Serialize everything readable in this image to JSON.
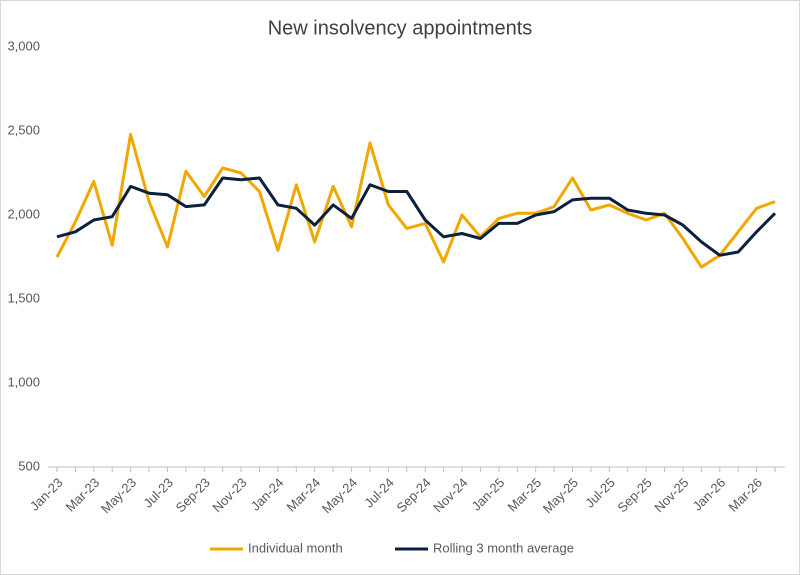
{
  "chart_data": {
    "type": "line",
    "title": "New insolvency appointments",
    "categories": [
      "Jan-23",
      null,
      "Mar-23",
      null,
      "May-23",
      null,
      "Jul-23",
      null,
      "Sep-23",
      null,
      "Nov-23",
      null,
      "Jan-24",
      null,
      "Mar-24",
      null,
      "May-24",
      null,
      "Jul-24",
      null,
      "Sep-24",
      null,
      "Nov-24",
      null,
      "Jan-25",
      null,
      "Mar-25",
      null,
      "May-25",
      null,
      "Jul-25",
      null,
      "Sep-25",
      null,
      "Nov-25",
      null,
      "Jan-26",
      null,
      "Mar-26",
      null
    ],
    "series": [
      {
        "name": "Individual month",
        "color": "#f0a800",
        "values": [
          1750,
          1960,
          2200,
          1820,
          2480,
          2080,
          1810,
          2260,
          2110,
          2280,
          2250,
          2140,
          1790,
          2180,
          1840,
          2170,
          1930,
          2430,
          2060,
          1920,
          1950,
          1720,
          2000,
          1870,
          1980,
          2010,
          2010,
          2050,
          2220,
          2030,
          2060,
          2010,
          1970,
          2010,
          1860,
          1690,
          1760,
          1900,
          2040,
          2080
        ]
      },
      {
        "name": "Rolling 3 month average",
        "color": "#0b1f3f",
        "values": [
          1870,
          1900,
          1970,
          1990,
          2170,
          2130,
          2120,
          2050,
          2060,
          2220,
          2210,
          2220,
          2060,
          2040,
          1940,
          2060,
          1980,
          2180,
          2140,
          2140,
          1970,
          1870,
          1890,
          1860,
          1950,
          1950,
          2000,
          2020,
          2090,
          2100,
          2100,
          2030,
          2010,
          2000,
          1940,
          1840,
          1760,
          1780,
          1900,
          2010
        ]
      }
    ],
    "ylim": [
      500,
      3000
    ],
    "yticks": [
      500,
      {
        "value": 1000,
        "label": "1,000"
      },
      {
        "value": 1500,
        "label": "1,500"
      },
      {
        "value": 2000,
        "label": "2,000"
      },
      {
        "value": 2500,
        "label": "2,500"
      },
      {
        "value": 3000,
        "label": "3,000"
      }
    ],
    "grid": false,
    "legend": "bottom"
  }
}
